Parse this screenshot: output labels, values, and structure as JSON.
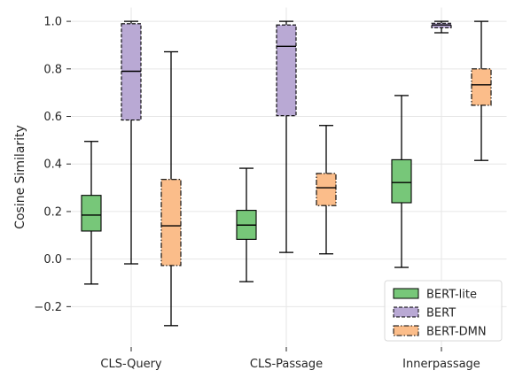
{
  "chart_data": {
    "type": "boxplot",
    "title": "",
    "xlabel": "",
    "ylabel": "Cosine Similarity",
    "ylim": [
      -0.37,
      1.06
    ],
    "yticks": [
      -0.2,
      0.0,
      0.2,
      0.4,
      0.6,
      0.8,
      1.0
    ],
    "ytick_labels": [
      "−0.2",
      "0.0",
      "0.2",
      "0.4",
      "0.6",
      "0.8",
      "1.0"
    ],
    "categories": [
      "CLS-Query",
      "CLS-Passage",
      "Innerpassage"
    ],
    "grid": true,
    "legend_position": "lower-right",
    "series": [
      {
        "name": "BERT-lite",
        "color": "#77c779",
        "dash": "solid",
        "boxes": [
          {
            "min": -0.105,
            "q1": 0.118,
            "median": 0.185,
            "q3": 0.268,
            "max": 0.495
          },
          {
            "min": -0.095,
            "q1": 0.083,
            "median": 0.143,
            "q3": 0.205,
            "max": 0.382
          },
          {
            "min": -0.035,
            "q1": 0.237,
            "median": 0.322,
            "q3": 0.418,
            "max": 0.688
          }
        ]
      },
      {
        "name": "BERT",
        "color": "#b9a9d4",
        "dash": "dashed",
        "boxes": [
          {
            "min": -0.02,
            "q1": 0.585,
            "median": 0.79,
            "q3": 0.99,
            "max": 1.0
          },
          {
            "min": 0.028,
            "q1": 0.603,
            "median": 0.895,
            "q3": 0.985,
            "max": 1.0
          },
          {
            "min": 0.952,
            "q1": 0.973,
            "median": 0.985,
            "q3": 0.992,
            "max": 1.0
          }
        ]
      },
      {
        "name": "BERT-DMN",
        "color": "#fbbd8a",
        "dash": "dashdot",
        "boxes": [
          {
            "min": -0.28,
            "q1": -0.027,
            "median": 0.14,
            "q3": 0.335,
            "max": 0.872
          },
          {
            "min": 0.022,
            "q1": 0.225,
            "median": 0.3,
            "q3": 0.36,
            "max": 0.562
          },
          {
            "min": 0.415,
            "q1": 0.647,
            "median": 0.733,
            "q3": 0.8,
            "max": 1.0
          }
        ]
      }
    ]
  }
}
